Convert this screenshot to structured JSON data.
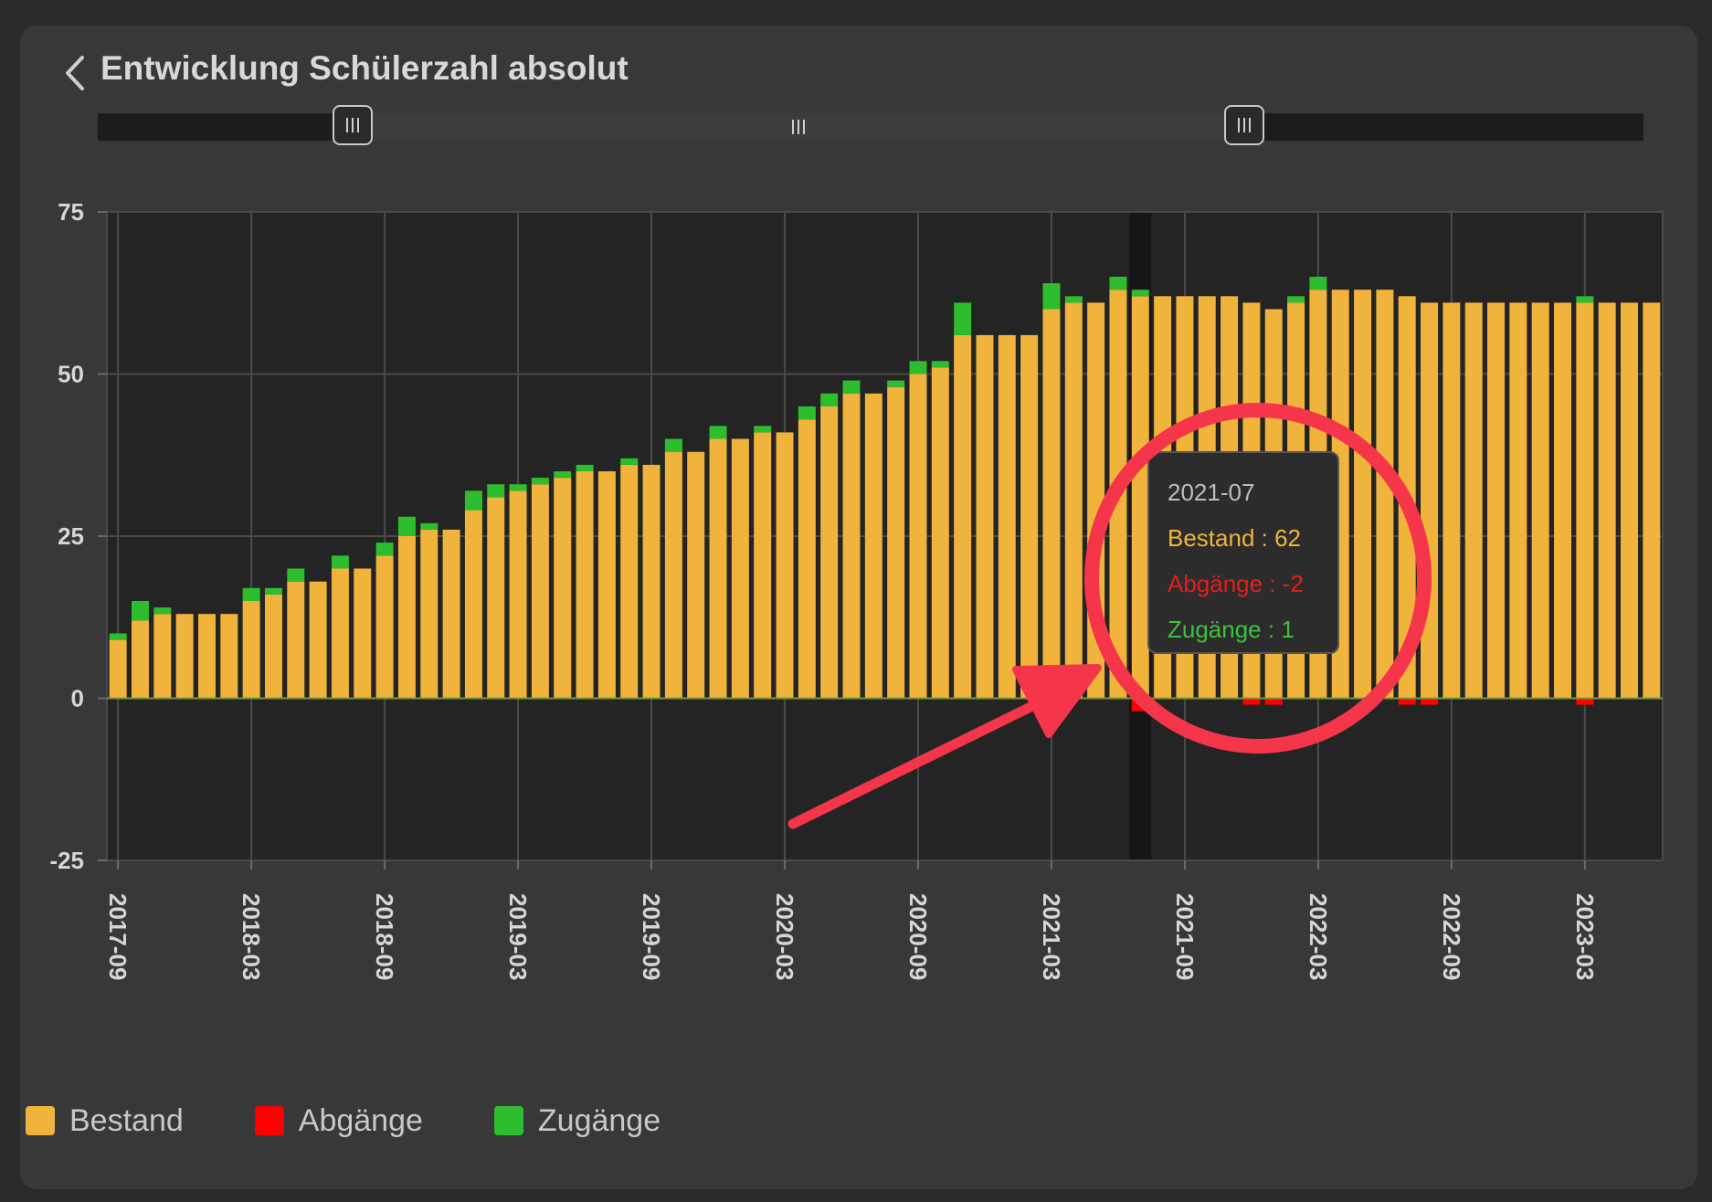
{
  "header": {
    "title": "Entwicklung Schülerzahl absolut"
  },
  "zoom": {
    "start_fraction": 0.165,
    "end_fraction": 0.742
  },
  "tooltip": {
    "date": "2021-07",
    "bestand": "Bestand : 62",
    "abgaenge": "Abgänge : -2",
    "zugaenge": "Zugänge : 1"
  },
  "legend": [
    {
      "label": "Bestand",
      "color": "#f0b43c"
    },
    {
      "label": "Abgänge",
      "color": "#ff0000"
    },
    {
      "label": "Zugänge",
      "color": "#2ebd2e"
    }
  ],
  "annotation": {
    "color": "#f5364a",
    "shapes": [
      "circle",
      "arrow"
    ]
  },
  "chart_data": {
    "type": "bar",
    "stacked": true,
    "x": [
      "2017-09",
      "2017-10",
      "2017-11",
      "2017-12",
      "2018-01",
      "2018-02",
      "2018-03",
      "2018-04",
      "2018-05",
      "2018-06",
      "2018-07",
      "2018-08",
      "2018-09",
      "2018-10",
      "2018-11",
      "2018-12",
      "2019-01",
      "2019-02",
      "2019-03",
      "2019-04",
      "2019-05",
      "2019-06",
      "2019-07",
      "2019-08",
      "2019-09",
      "2019-10",
      "2019-11",
      "2019-12",
      "2020-01",
      "2020-02",
      "2020-03",
      "2020-04",
      "2020-05",
      "2020-06",
      "2020-07",
      "2020-08",
      "2020-09",
      "2020-10",
      "2020-11",
      "2020-12",
      "2021-01",
      "2021-02",
      "2021-03",
      "2021-04",
      "2021-05",
      "2021-06",
      "2021-07",
      "2021-08",
      "2021-09",
      "2021-10",
      "2021-11",
      "2021-12",
      "2022-01",
      "2022-02",
      "2022-03",
      "2022-04",
      "2022-05",
      "2022-06",
      "2022-07",
      "2022-08",
      "2022-09",
      "2022-10",
      "2022-11",
      "2022-12",
      "2023-01",
      "2023-02",
      "2023-03",
      "2023-04",
      "2023-05",
      "2023-06"
    ],
    "x_tick_labels": [
      "2017-09",
      "2018-03",
      "2018-09",
      "2019-03",
      "2019-09",
      "2020-03",
      "2020-09",
      "2021-03",
      "2021-09",
      "2022-03",
      "2022-09",
      "2023-03"
    ],
    "series": [
      {
        "name": "Bestand",
        "color": "#f0b43c",
        "values": [
          9,
          12,
          13,
          13,
          13,
          13,
          15,
          16,
          18,
          18,
          20,
          20,
          22,
          25,
          26,
          26,
          29,
          31,
          32,
          33,
          34,
          35,
          35,
          36,
          36,
          38,
          38,
          40,
          40,
          41,
          41,
          43,
          45,
          47,
          47,
          48,
          50,
          51,
          56,
          56,
          56,
          56,
          60,
          61,
          61,
          63,
          62,
          62,
          62,
          62,
          62,
          61,
          60,
          61,
          63,
          63,
          63,
          63,
          62,
          61,
          61,
          61,
          61,
          61,
          61,
          61,
          61,
          61,
          61,
          61
        ]
      },
      {
        "name": "Abgänge",
        "color": "#ff0000",
        "values": [
          0,
          0,
          0,
          0,
          0,
          0,
          0,
          0,
          0,
          0,
          0,
          0,
          0,
          0,
          0,
          0,
          0,
          0,
          0,
          0,
          0,
          0,
          0,
          0,
          0,
          0,
          0,
          0,
          0,
          0,
          0,
          0,
          0,
          0,
          0,
          0,
          0,
          0,
          0,
          0,
          0,
          0,
          0,
          0,
          0,
          0,
          -2,
          0,
          0,
          0,
          0,
          -1,
          -1,
          0,
          0,
          0,
          0,
          0,
          -1,
          -1,
          0,
          0,
          0,
          0,
          0,
          0,
          -1,
          0,
          0,
          0
        ]
      },
      {
        "name": "Zugänge",
        "color": "#2ebd2e",
        "values": [
          1,
          3,
          1,
          0,
          0,
          0,
          2,
          1,
          2,
          0,
          2,
          0,
          2,
          3,
          1,
          0,
          3,
          2,
          1,
          1,
          1,
          1,
          0,
          1,
          0,
          2,
          0,
          2,
          0,
          1,
          0,
          2,
          2,
          2,
          0,
          1,
          2,
          1,
          5,
          0,
          0,
          0,
          4,
          1,
          0,
          2,
          1,
          0,
          0,
          0,
          0,
          0,
          0,
          1,
          2,
          0,
          0,
          0,
          0,
          0,
          0,
          0,
          0,
          0,
          0,
          0,
          1,
          0,
          0,
          0
        ]
      }
    ],
    "ylim": [
      -25,
      75
    ],
    "y_ticks": [
      -25,
      0,
      25,
      50,
      75
    ],
    "grid": true,
    "highlighted_x": "2021-07",
    "legend_position": "bottom-left"
  }
}
